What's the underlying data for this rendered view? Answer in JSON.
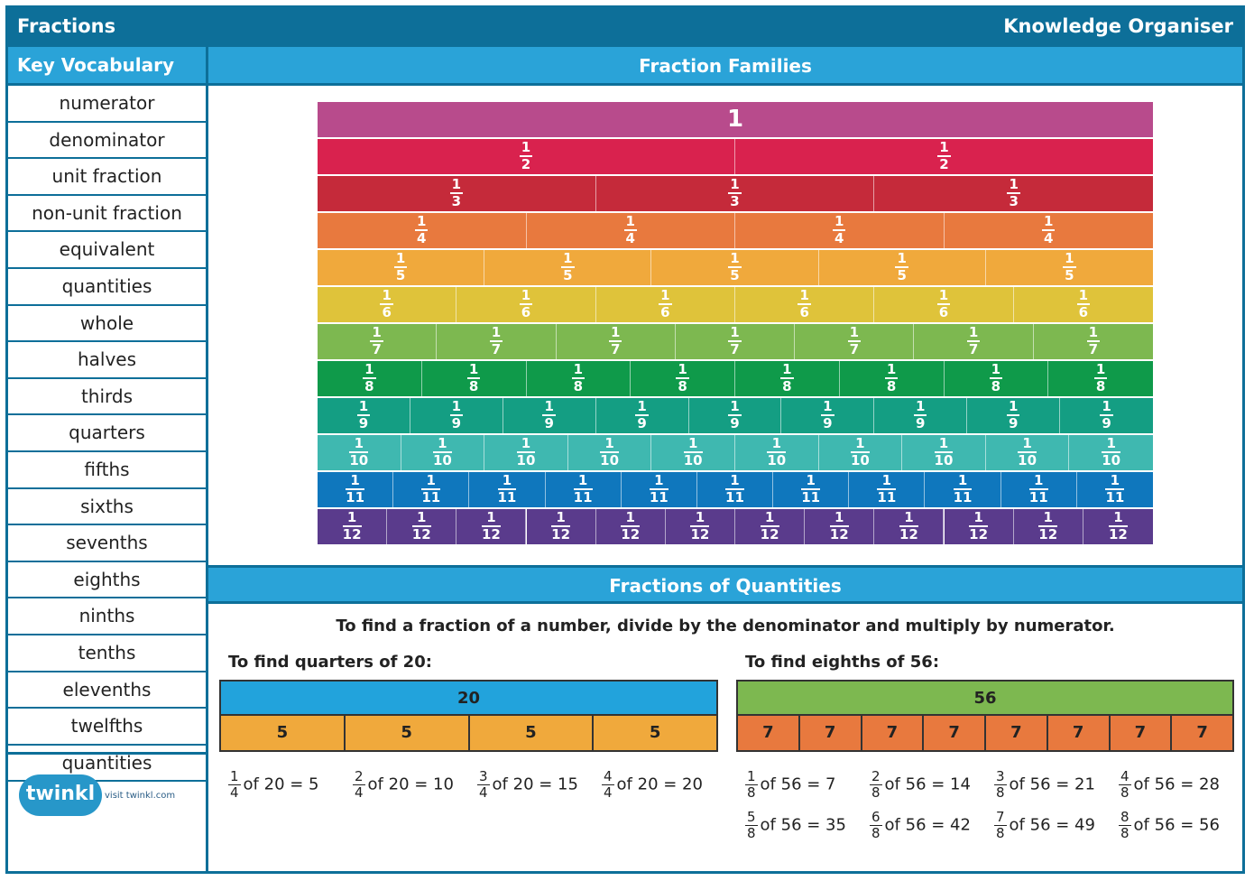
{
  "header": {
    "title": "Fractions",
    "subtitle": "Knowledge Organiser"
  },
  "vocabulary": {
    "heading": "Key Vocabulary",
    "items": [
      "numerator",
      "denominator",
      "unit fraction",
      "non-unit fraction",
      "equivalent",
      "quantities",
      "whole",
      "halves",
      "thirds",
      "quarters",
      "fifths",
      "sixths",
      "sevenths",
      "eighths",
      "ninths",
      "tenths",
      "elevenths",
      "twelfths",
      "quantities"
    ]
  },
  "fraction_families": {
    "heading": "Fraction Families",
    "whole_label": "1",
    "rows": [
      {
        "denominator": 1,
        "color": "#b84b8c"
      },
      {
        "denominator": 2,
        "color": "#d9224e"
      },
      {
        "denominator": 3,
        "color": "#c52a3a"
      },
      {
        "denominator": 4,
        "color": "#e8793e"
      },
      {
        "denominator": 5,
        "color": "#f0a93c"
      },
      {
        "denominator": 6,
        "color": "#dfc33a"
      },
      {
        "denominator": 7,
        "color": "#7db850"
      },
      {
        "denominator": 8,
        "color": "#0f9a4a"
      },
      {
        "denominator": 9,
        "color": "#149e83"
      },
      {
        "denominator": 10,
        "color": "#3fb8b0"
      },
      {
        "denominator": 11,
        "color": "#0f77bd"
      },
      {
        "denominator": 12,
        "color": "#5a3b8c"
      }
    ]
  },
  "fractions_of_quantities": {
    "heading": "Fractions of Quantities",
    "instruction": "To find a fraction of a number, divide by the denominator and multiply by numerator.",
    "examples": [
      {
        "title": "To find quarters of 20:",
        "whole": "20",
        "whole_color": "#22a3dc",
        "part": "5",
        "parts_count": 4,
        "part_color": "#f0a93c",
        "equations": [
          {
            "n": "1",
            "d": "4",
            "text": "of 20 = 5"
          },
          {
            "n": "2",
            "d": "4",
            "text": "of 20 = 10"
          },
          {
            "n": "3",
            "d": "4",
            "text": "of 20 = 15"
          },
          {
            "n": "4",
            "d": "4",
            "text": "of 20 = 20"
          }
        ]
      },
      {
        "title": "To find eighths of 56:",
        "whole": "56",
        "whole_color": "#7db850",
        "part": "7",
        "parts_count": 8,
        "part_color": "#e8793e",
        "equations": [
          {
            "n": "1",
            "d": "8",
            "text": "of 56 = 7"
          },
          {
            "n": "2",
            "d": "8",
            "text": "of 56 = 14"
          },
          {
            "n": "3",
            "d": "8",
            "text": "of 56 = 21"
          },
          {
            "n": "4",
            "d": "8",
            "text": "of 56 = 28"
          },
          {
            "n": "5",
            "d": "8",
            "text": "of 56 = 35"
          },
          {
            "n": "6",
            "d": "8",
            "text": "of 56 = 42"
          },
          {
            "n": "7",
            "d": "8",
            "text": "of 56 = 49"
          },
          {
            "n": "8",
            "d": "8",
            "text": "of 56 = 56"
          }
        ]
      }
    ]
  },
  "logo": {
    "brand": "twinkl",
    "visit_text": "visit twinkl.com"
  }
}
